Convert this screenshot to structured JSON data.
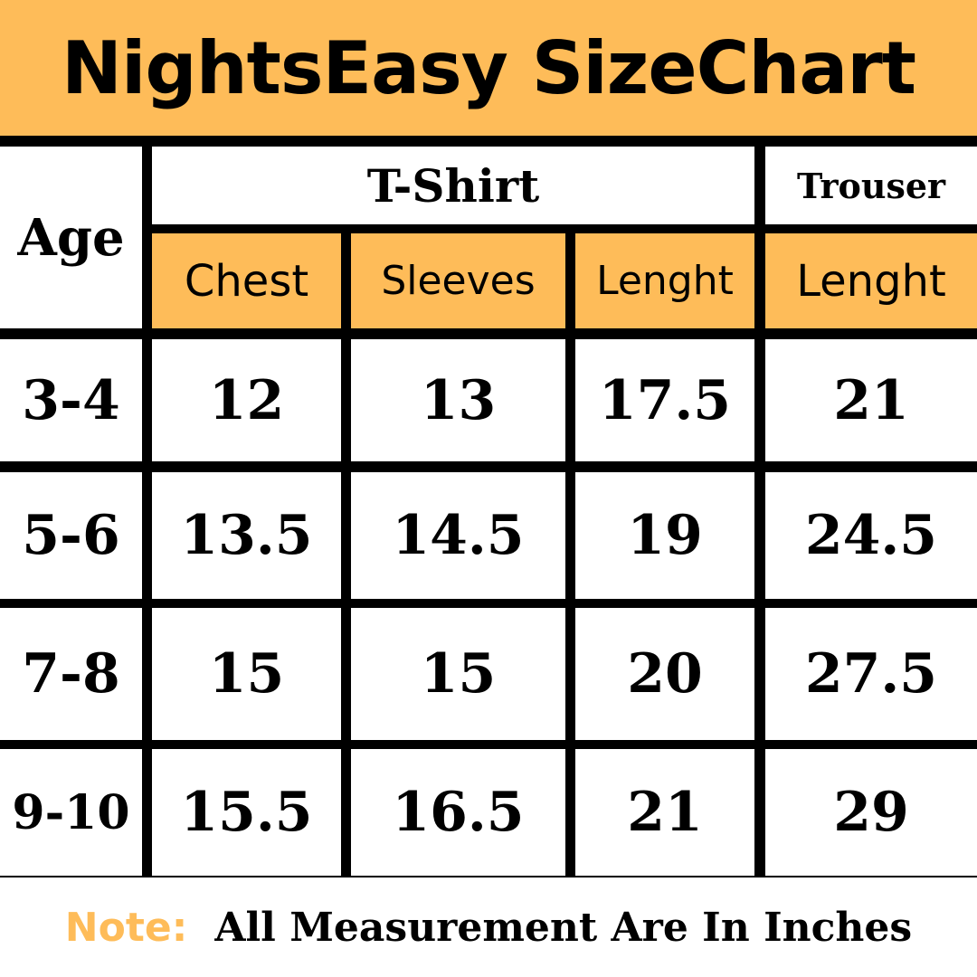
{
  "title": "NightsEasy SizeChart",
  "header": {
    "age": "Age",
    "groups": [
      "T-Shirt",
      "Trouser"
    ],
    "columns": [
      "Chest",
      "Sleeves",
      "Lenght",
      "Lenght"
    ]
  },
  "rows": [
    {
      "age": "3-4",
      "values": [
        "12",
        "13",
        "17.5",
        "21"
      ]
    },
    {
      "age": "5-6",
      "values": [
        "13.5",
        "14.5",
        "19",
        "24.5"
      ]
    },
    {
      "age": "7-8",
      "values": [
        "15",
        "15",
        "20",
        "27.5"
      ]
    },
    {
      "age": "9-10",
      "values": [
        "15.5",
        "16.5",
        "21",
        "29"
      ]
    }
  ],
  "footer": {
    "note_label": "Note:",
    "note_text": "All Measurement Are In Inches"
  },
  "colors": {
    "accent": "#FEBC59",
    "grid": "#000000"
  }
}
